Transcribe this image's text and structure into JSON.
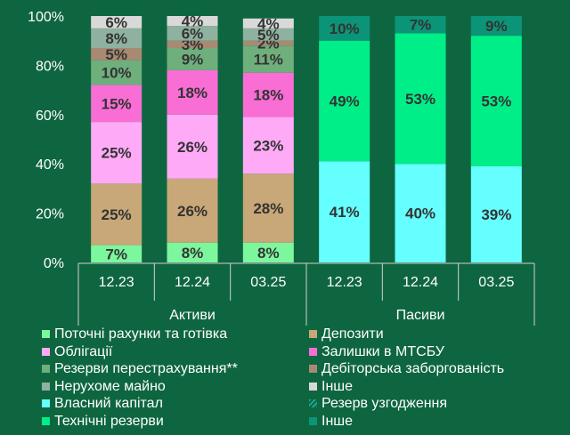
{
  "chart_data": {
    "type": "bar",
    "stacked": true,
    "ylim": [
      0,
      100
    ],
    "yticks": [
      "0%",
      "20%",
      "40%",
      "60%",
      "80%",
      "100%"
    ],
    "grid": false,
    "legend_position": "bottom",
    "groups": [
      {
        "label": "Активи",
        "categories": [
          "12.23",
          "12.24",
          "03.25"
        ]
      },
      {
        "label": "Пасиви",
        "categories": [
          "12.23",
          "12.24",
          "03.25"
        ]
      }
    ],
    "bars": [
      {
        "group": "Активи",
        "category": "12.23",
        "segments": [
          {
            "series": "Поточні рахунки та готівка",
            "value": 7,
            "label": "7%",
            "color": "#7cf79e"
          },
          {
            "series": "Депозити",
            "value": 25,
            "label": "25%",
            "color": "#c8a878"
          },
          {
            "series": "Облігації",
            "value": 25,
            "label": "25%",
            "color": "#ffaaf6"
          },
          {
            "series": "Залишки в МТСБУ",
            "value": 15,
            "label": "15%",
            "color": "#f86ed4"
          },
          {
            "series": "Резерви перестрахування**",
            "value": 10,
            "label": "10%",
            "color": "#6eaf7c"
          },
          {
            "series": "Дебіторська заборгованість",
            "value": 5,
            "label": "5%",
            "color": "#a88a72"
          },
          {
            "series": "Нерухоме майно",
            "value": 8,
            "label": "8%",
            "color": "#8fb19f"
          },
          {
            "series": "Інше",
            "value": 6,
            "label": "6%",
            "color": "#d9d9d9"
          }
        ]
      },
      {
        "group": "Активи",
        "category": "12.24",
        "segments": [
          {
            "series": "Поточні рахунки та готівка",
            "value": 8,
            "label": "8%",
            "color": "#7cf79e"
          },
          {
            "series": "Депозити",
            "value": 26,
            "label": "26%",
            "color": "#c8a878"
          },
          {
            "series": "Облігації",
            "value": 26,
            "label": "26%",
            "color": "#ffaaf6"
          },
          {
            "series": "Залишки в МТСБУ",
            "value": 18,
            "label": "18%",
            "color": "#f86ed4"
          },
          {
            "series": "Резерви перестрахування**",
            "value": 9,
            "label": "9%",
            "color": "#6eaf7c"
          },
          {
            "series": "Дебіторська заборгованість",
            "value": 3,
            "label": "3%",
            "color": "#a88a72"
          },
          {
            "series": "Нерухоме майно",
            "value": 6,
            "label": "6%",
            "color": "#8fb19f"
          },
          {
            "series": "Інше",
            "value": 4,
            "label": "4%",
            "color": "#d9d9d9"
          }
        ]
      },
      {
        "group": "Активи",
        "category": "03.25",
        "segments": [
          {
            "series": "Поточні рахунки та готівка",
            "value": 8,
            "label": "8%",
            "color": "#7cf79e"
          },
          {
            "series": "Депозити",
            "value": 28,
            "label": "28%",
            "color": "#c8a878"
          },
          {
            "series": "Облігації",
            "value": 23,
            "label": "23%",
            "color": "#ffaaf6"
          },
          {
            "series": "Залишки в МТСБУ",
            "value": 18,
            "label": "18%",
            "color": "#f86ed4"
          },
          {
            "series": "Резерви перестрахування**",
            "value": 11,
            "label": "11%",
            "color": "#6eaf7c"
          },
          {
            "series": "Дебіторська заборгованість",
            "value": 2,
            "label": "2%",
            "color": "#a88a72"
          },
          {
            "series": "Нерухоме майно",
            "value": 5,
            "label": "5%",
            "color": "#8fb19f"
          },
          {
            "series": "Інше",
            "value": 4,
            "label": "4%",
            "color": "#d9d9d9"
          }
        ]
      },
      {
        "group": "Пасиви",
        "category": "12.23",
        "segments": [
          {
            "series": "Власний капітал",
            "value": 41,
            "label": "41%",
            "color": "#66ffff"
          },
          {
            "series": "Технічні резерви",
            "value": 49,
            "label": "49%",
            "color": "#00ee88"
          },
          {
            "series": "Інше",
            "value": 10,
            "label": "10%",
            "color": "#0b9478"
          }
        ]
      },
      {
        "group": "Пасиви",
        "category": "12.24",
        "segments": [
          {
            "series": "Власний капітал",
            "value": 40,
            "label": "40%",
            "color": "#66ffff"
          },
          {
            "series": "Технічні резерви",
            "value": 53,
            "label": "53%",
            "color": "#00ee88"
          },
          {
            "series": "Інше",
            "value": 7,
            "label": "7%",
            "color": "#0b9478"
          }
        ]
      },
      {
        "group": "Пасиви",
        "category": "03.25",
        "segments": [
          {
            "series": "Власний капітал",
            "value": 39,
            "label": "39%",
            "color": "#66ffff"
          },
          {
            "series": "Технічні резерви",
            "value": 53,
            "label": "53%",
            "color": "#00ee88"
          },
          {
            "series": "Інше",
            "value": 9,
            "label": "9%",
            "color": "#0b9478"
          }
        ]
      }
    ],
    "legend": [
      [
        {
          "name": "Поточні рахунки та готівка",
          "color": "#7cf79e"
        },
        {
          "name": "Облігації",
          "color": "#ffaaf6"
        },
        {
          "name": "Резерви перестрахування**",
          "color": "#6eaf7c"
        },
        {
          "name": "Нерухоме майно",
          "color": "#8fb19f"
        },
        {
          "name": "Власний капітал",
          "color": "#66ffff"
        },
        {
          "name": "Технічні резерви",
          "color": "#00ee88"
        }
      ],
      [
        {
          "name": "Депозити",
          "color": "#c8a878"
        },
        {
          "name": "Залишки в МТСБУ",
          "color": "#f86ed4"
        },
        {
          "name": "Дебіторська заборгованість",
          "color": "#a88a72"
        },
        {
          "name": "Інше",
          "color": "#d9d9d9"
        },
        {
          "name": "Резерв узгодження",
          "color": "#1aa89a",
          "pattern": "hatch"
        },
        {
          "name": "Інше",
          "color": "#0b9478"
        }
      ]
    ]
  }
}
